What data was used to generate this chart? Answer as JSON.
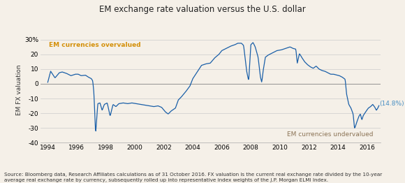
{
  "title": "EM exchange rate valuation versus the U.S. dollar",
  "ylabel": "EM FX valuation",
  "ylim": [
    -40,
    32
  ],
  "yticks": [
    -40,
    -30,
    -20,
    -10,
    0,
    10,
    20,
    30
  ],
  "ytick_labels": [
    "-40",
    "-30",
    "-20",
    "-10",
    "0",
    "10",
    "20",
    "30%"
  ],
  "xlim_start": 1993.5,
  "xlim_end": 2016.95,
  "xticks": [
    1994,
    1996,
    1998,
    2000,
    2002,
    2004,
    2006,
    2008,
    2010,
    2012,
    2014,
    2016
  ],
  "line_color": "#1a5fa8",
  "background_color": "#f5f0e8",
  "overvalued_label": "EM currencies overvalued",
  "overvalued_color": "#d4900a",
  "undervalued_label": "EM currencies undervalued",
  "undervalued_color": "#8b7355",
  "annotation_text": "(14.8%)",
  "annotation_color": "#4a90c4",
  "source_text": "Source: Bloomberg data, Research Affiliates calculations as of 31 October 2016. FX valuation is the current real exchange rate divided by the 10-year\naverage real exchange rate by currency, subsequently rolled up into representative index weights of the J.P. Morgan ELMI Index.",
  "zero_line_color": "#888888",
  "grid_color": "#cccccc",
  "keypoints": [
    [
      1994.0,
      1.0
    ],
    [
      1994.2,
      8.5
    ],
    [
      1994.5,
      4.0
    ],
    [
      1994.8,
      7.5
    ],
    [
      1995.0,
      8.0
    ],
    [
      1995.3,
      7.0
    ],
    [
      1995.6,
      5.5
    ],
    [
      1995.9,
      6.5
    ],
    [
      1996.1,
      6.5
    ],
    [
      1996.3,
      5.5
    ],
    [
      1996.6,
      5.8
    ],
    [
      1996.8,
      4.5
    ],
    [
      1997.0,
      3.5
    ],
    [
      1997.1,
      2.0
    ],
    [
      1997.18,
      -6.0
    ],
    [
      1997.3,
      -34.0
    ],
    [
      1997.45,
      -13.5
    ],
    [
      1997.6,
      -13.0
    ],
    [
      1997.75,
      -18.0
    ],
    [
      1997.9,
      -14.0
    ],
    [
      1998.1,
      -13.0
    ],
    [
      1998.3,
      -22.0
    ],
    [
      1998.5,
      -14.0
    ],
    [
      1998.7,
      -15.5
    ],
    [
      1998.9,
      -13.5
    ],
    [
      1999.2,
      -13.0
    ],
    [
      1999.5,
      -13.5
    ],
    [
      1999.8,
      -13.0
    ],
    [
      2000.1,
      -13.5
    ],
    [
      2000.4,
      -14.0
    ],
    [
      2000.7,
      -14.5
    ],
    [
      2001.0,
      -15.0
    ],
    [
      2001.3,
      -15.5
    ],
    [
      2001.6,
      -15.0
    ],
    [
      2001.85,
      -16.0
    ],
    [
      2002.1,
      -19.0
    ],
    [
      2002.3,
      -20.5
    ],
    [
      2002.5,
      -18.5
    ],
    [
      2002.8,
      -16.5
    ],
    [
      2003.0,
      -11.0
    ],
    [
      2003.2,
      -9.0
    ],
    [
      2003.5,
      -5.5
    ],
    [
      2003.8,
      -1.5
    ],
    [
      2004.0,
      3.5
    ],
    [
      2004.3,
      8.0
    ],
    [
      2004.6,
      12.5
    ],
    [
      2004.9,
      13.5
    ],
    [
      2005.2,
      14.0
    ],
    [
      2005.5,
      17.5
    ],
    [
      2005.8,
      20.0
    ],
    [
      2006.0,
      22.5
    ],
    [
      2006.3,
      24.0
    ],
    [
      2006.6,
      25.5
    ],
    [
      2006.9,
      26.5
    ],
    [
      2007.1,
      27.5
    ],
    [
      2007.35,
      27.5
    ],
    [
      2007.5,
      26.0
    ],
    [
      2007.62,
      16.0
    ],
    [
      2007.72,
      8.0
    ],
    [
      2007.85,
      2.0
    ],
    [
      2008.0,
      26.5
    ],
    [
      2008.15,
      28.0
    ],
    [
      2008.3,
      25.0
    ],
    [
      2008.5,
      18.0
    ],
    [
      2008.65,
      5.0
    ],
    [
      2008.75,
      1.0
    ],
    [
      2008.85,
      9.0
    ],
    [
      2009.0,
      18.0
    ],
    [
      2009.2,
      19.5
    ],
    [
      2009.5,
      21.0
    ],
    [
      2009.8,
      22.5
    ],
    [
      2010.1,
      23.0
    ],
    [
      2010.4,
      24.0
    ],
    [
      2010.7,
      25.0
    ],
    [
      2010.9,
      24.0
    ],
    [
      2011.1,
      23.5
    ],
    [
      2011.2,
      14.0
    ],
    [
      2011.35,
      20.5
    ],
    [
      2011.5,
      18.0
    ],
    [
      2011.7,
      15.0
    ],
    [
      2011.9,
      13.0
    ],
    [
      2012.1,
      11.5
    ],
    [
      2012.3,
      10.5
    ],
    [
      2012.5,
      12.0
    ],
    [
      2012.7,
      10.0
    ],
    [
      2012.9,
      9.0
    ],
    [
      2013.1,
      8.5
    ],
    [
      2013.3,
      7.5
    ],
    [
      2013.5,
      6.5
    ],
    [
      2013.7,
      6.5
    ],
    [
      2013.9,
      6.0
    ],
    [
      2014.1,
      5.5
    ],
    [
      2014.3,
      4.5
    ],
    [
      2014.5,
      3.0
    ],
    [
      2014.6,
      -7.0
    ],
    [
      2014.75,
      -14.0
    ],
    [
      2014.9,
      -16.5
    ],
    [
      2015.05,
      -20.5
    ],
    [
      2015.15,
      -30.5
    ],
    [
      2015.3,
      -26.0
    ],
    [
      2015.45,
      -22.0
    ],
    [
      2015.55,
      -20.5
    ],
    [
      2015.65,
      -24.5
    ],
    [
      2015.75,
      -21.5
    ],
    [
      2015.85,
      -20.0
    ],
    [
      2015.95,
      -18.5
    ],
    [
      2016.1,
      -16.5
    ],
    [
      2016.25,
      -15.5
    ],
    [
      2016.4,
      -14.0
    ],
    [
      2016.55,
      -16.0
    ],
    [
      2016.65,
      -18.0
    ],
    [
      2016.75,
      -16.5
    ],
    [
      2016.83,
      -14.8
    ]
  ]
}
